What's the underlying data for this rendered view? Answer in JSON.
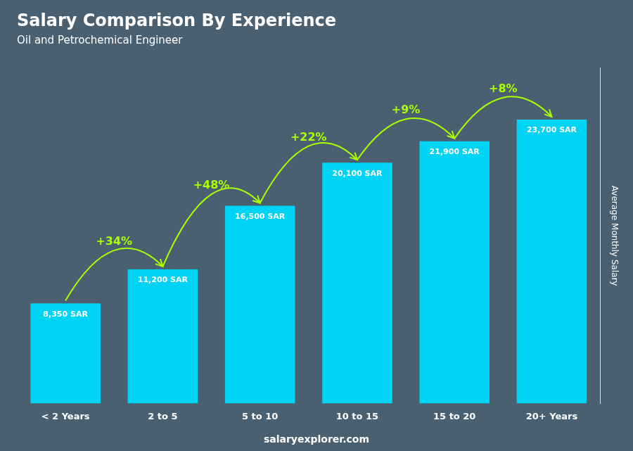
{
  "chart_data": {
    "type": "bar",
    "title": "Salary Comparison By Experience",
    "subtitle": "Oil and Petrochemical Engineer",
    "ylabel": "Average Monthly Salary",
    "footer": "salaryexplorer.com",
    "categories": [
      "< 2 Years",
      "2 to 5",
      "5 to 10",
      "10 to 15",
      "15 to 20",
      "20+ Years"
    ],
    "values": [
      8350,
      11200,
      16500,
      20100,
      21900,
      23700
    ],
    "value_labels": [
      "8,350 SAR",
      "11,200 SAR",
      "16,500 SAR",
      "20,100 SAR",
      "21,900 SAR",
      "23,700 SAR"
    ],
    "data_labels": true,
    "annotations": [
      "+34%",
      "+48%",
      "+22%",
      "+9%",
      "+8%"
    ],
    "color": "#00d4f5",
    "ylim": [
      0,
      28000
    ],
    "grid": false,
    "tick_labels": "x"
  }
}
